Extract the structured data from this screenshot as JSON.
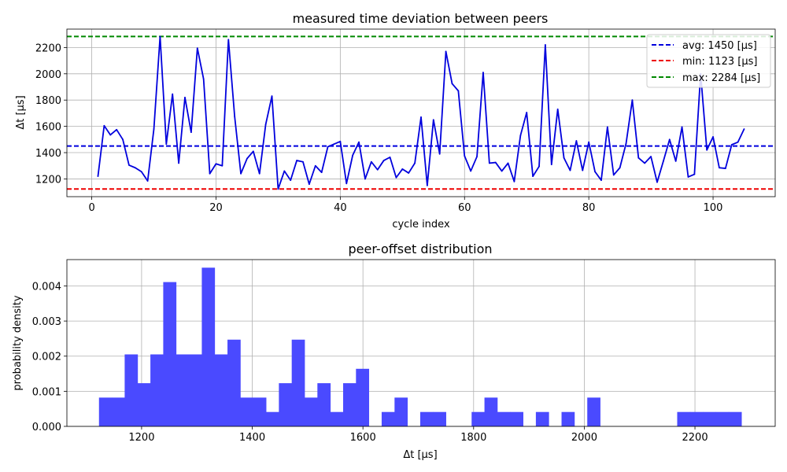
{
  "colors": {
    "series": "#0000dd",
    "avg": "#0000dd",
    "min": "#ee0000",
    "max": "#008800",
    "hist": "#4a4aff"
  },
  "chart_data": [
    {
      "type": "line",
      "title": "measured time deviation between peers",
      "xlabel": "cycle index",
      "ylabel": "Δt [μs]",
      "xlim": [
        -4,
        110
      ],
      "ylim": [
        1065,
        2340
      ],
      "xticks": [
        0,
        20,
        40,
        60,
        80,
        100
      ],
      "yticks": [
        1200,
        1400,
        1600,
        1800,
        2000,
        2200
      ],
      "grid": true,
      "legend_position": "top-right",
      "x_start": 1,
      "series": [
        {
          "values": [
            1220,
            1605,
            1535,
            1575,
            1500,
            1305,
            1285,
            1255,
            1185,
            1580,
            2284,
            1465,
            1845,
            1320,
            1820,
            1555,
            2195,
            1960,
            1240,
            1315,
            1300,
            2260,
            1675,
            1240,
            1355,
            1410,
            1240,
            1615,
            1830,
            1123,
            1260,
            1190,
            1340,
            1330,
            1160,
            1300,
            1250,
            1445,
            1465,
            1485,
            1165,
            1380,
            1480,
            1200,
            1330,
            1270,
            1340,
            1365,
            1210,
            1275,
            1245,
            1320,
            1670,
            1150,
            1650,
            1390,
            2170,
            1925,
            1870,
            1375,
            1260,
            1370,
            2010,
            1320,
            1325,
            1260,
            1320,
            1180,
            1530,
            1705,
            1220,
            1295,
            2220,
            1310,
            1730,
            1360,
            1265,
            1490,
            1265,
            1480,
            1255,
            1190,
            1595,
            1230,
            1285,
            1470,
            1800,
            1360,
            1320,
            1370,
            1175,
            1335,
            1500,
            1335,
            1595,
            1215,
            1235,
            2000,
            1420,
            1520,
            1285,
            1280,
            1460,
            1480,
            1580
          ]
        }
      ],
      "reference_lines": [
        {
          "label": "avg: 1450 [μs]",
          "value": 1450,
          "color": "#0000dd"
        },
        {
          "label": "min: 1123 [μs]",
          "value": 1123,
          "color": "#ee0000"
        },
        {
          "label": "max: 2284 [μs]",
          "value": 2284,
          "color": "#008800"
        }
      ]
    },
    {
      "type": "bar",
      "title": "peer-offset distribution",
      "xlabel": "Δt [μs]",
      "ylabel": "probability density",
      "xlim": [
        1065,
        2345
      ],
      "ylim": [
        0,
        0.00475
      ],
      "xticks": [
        1200,
        1400,
        1600,
        1800,
        2000,
        2200
      ],
      "yticks": [
        0.0,
        0.001,
        0.002,
        0.003,
        0.004
      ],
      "ytick_labels": [
        "0.000",
        "0.001",
        "0.002",
        "0.003",
        "0.004"
      ],
      "grid": true,
      "bin_edges": [
        1123.0,
        1146.2,
        1169.4,
        1192.7,
        1215.9,
        1239.1,
        1262.3,
        1285.5,
        1308.8,
        1332.0,
        1355.2,
        1378.4,
        1401.6,
        1424.9,
        1448.1,
        1471.3,
        1494.5,
        1517.7,
        1541.0,
        1564.2,
        1587.4,
        1610.6,
        1633.8,
        1657.1,
        1680.3,
        1703.5,
        1726.7,
        1749.9,
        1773.2,
        1796.4,
        1819.6,
        1842.8,
        1866.0,
        1889.3,
        1912.5,
        1935.7,
        1958.9,
        1982.1,
        2005.4,
        2028.6,
        2051.8,
        2075.0,
        2098.2,
        2121.5,
        2144.7,
        2167.9,
        2191.1,
        2214.3,
        2237.6,
        2260.8,
        2284.0
      ],
      "values": [
        0.00082,
        0.00082,
        0.00205,
        0.00123,
        0.00205,
        0.00411,
        0.00205,
        0.00205,
        0.00452,
        0.00205,
        0.00247,
        0.00082,
        0.00082,
        0.00041,
        0.00123,
        0.00247,
        0.00082,
        0.00123,
        0.00041,
        0.00123,
        0.00164,
        0,
        0.00041,
        0.00082,
        0,
        0.00041,
        0.00041,
        0,
        0,
        0.00041,
        0.00082,
        0.00041,
        0.00041,
        0,
        0.00041,
        0,
        0.00041,
        0,
        0.00082,
        0,
        0,
        0,
        0,
        0,
        0,
        0.00041,
        0.00041,
        0.00041,
        0.00041,
        0.00041
      ]
    }
  ]
}
